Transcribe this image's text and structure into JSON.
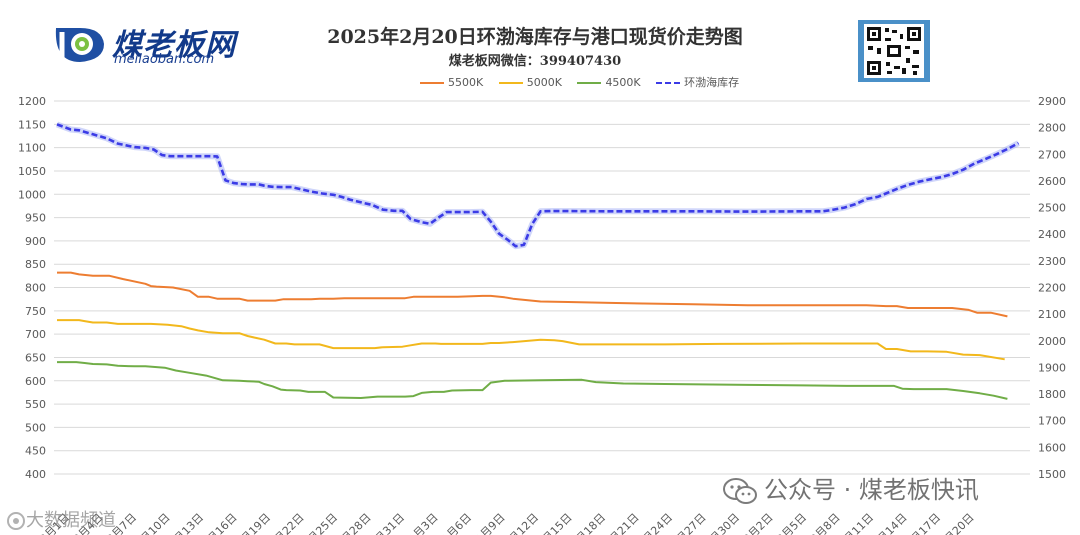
{
  "header": {
    "logo_text": "煤老板网",
    "logo_url": "meilaoban.com",
    "title": "2025年2月20日环渤海库存与港口现货价走势图",
    "subtitle": "煤老板网微信：399407430"
  },
  "watermarks": {
    "wechat": "公众号 · 煤老板快讯",
    "corner": "大数据频道"
  },
  "colors": {
    "p5500": "#ED7D31",
    "p5000": "#F2B81C",
    "p4500": "#70AD47",
    "stock": "#3B3BE6",
    "grid": "#D9D9D9",
    "axis_text": "#595959"
  },
  "chart_data": {
    "type": "line",
    "x": [
      "12月1日",
      "12月4日",
      "12月7日",
      "12月10日",
      "12月13日",
      "12月16日",
      "12月19日",
      "12月22日",
      "12月25日",
      "12月28日",
      "12月31日",
      "1月3日",
      "1月6日",
      "1月9日",
      "1月12日",
      "1月15日",
      "1月18日",
      "1月21日",
      "1月24日",
      "1月27日",
      "1月30日",
      "2月2日",
      "2月5日",
      "2月8日",
      "2月11日",
      "2月14日",
      "2月17日",
      "2月20日"
    ],
    "y_left": {
      "min": 400,
      "max": 1200,
      "ticks": [
        400,
        450,
        500,
        550,
        600,
        650,
        700,
        750,
        800,
        850,
        900,
        950,
        1000,
        1050,
        1100,
        1150,
        1200
      ]
    },
    "y_right": {
      "min": 1500,
      "max": 2900,
      "ticks": [
        1500,
        1600,
        1700,
        1800,
        1900,
        2000,
        2100,
        2200,
        2300,
        2400,
        2500,
        2600,
        2700,
        2800,
        2900
      ]
    },
    "grid": true,
    "legend_position": "top-center",
    "series": [
      {
        "name": "5500K",
        "axis": "left",
        "points": [
          [
            0,
            832
          ],
          [
            5,
            832
          ],
          [
            8,
            828
          ],
          [
            13,
            825
          ],
          [
            19,
            825
          ],
          [
            24,
            818
          ],
          [
            32,
            808
          ],
          [
            34,
            803
          ],
          [
            36,
            802
          ],
          [
            42,
            800
          ],
          [
            48,
            793
          ],
          [
            51,
            780
          ],
          [
            55,
            780
          ],
          [
            58,
            776
          ],
          [
            60,
            776
          ],
          [
            66,
            776
          ],
          [
            69,
            772
          ],
          [
            72,
            772
          ],
          [
            79,
            772
          ],
          [
            82,
            775
          ],
          [
            92,
            775
          ],
          [
            95,
            776
          ],
          [
            100,
            776
          ],
          [
            104,
            777
          ],
          [
            108,
            777
          ],
          [
            121,
            777
          ],
          [
            126,
            777
          ],
          [
            129,
            780
          ],
          [
            135,
            780
          ],
          [
            145,
            780
          ],
          [
            154,
            782
          ],
          [
            157,
            782
          ],
          [
            162,
            779
          ],
          [
            165,
            776
          ],
          [
            170,
            773
          ],
          [
            175,
            770
          ],
          [
            185,
            769
          ],
          [
            200,
            767
          ],
          [
            230,
            764
          ],
          [
            250,
            762
          ],
          [
            271,
            762
          ],
          [
            277,
            762
          ],
          [
            293,
            762
          ],
          [
            297,
            761
          ],
          [
            300,
            760
          ],
          [
            304,
            760
          ],
          [
            308,
            756
          ],
          [
            320,
            756
          ],
          [
            324,
            756
          ],
          [
            330,
            752
          ],
          [
            333,
            746
          ],
          [
            338,
            746
          ],
          [
            344,
            738
          ]
        ]
      },
      {
        "name": "5000K",
        "axis": "left",
        "points": [
          [
            0,
            730
          ],
          [
            8,
            730
          ],
          [
            10,
            728
          ],
          [
            13,
            725
          ],
          [
            18,
            725
          ],
          [
            22,
            722
          ],
          [
            30,
            722
          ],
          [
            34,
            722
          ],
          [
            40,
            720
          ],
          [
            45,
            717
          ],
          [
            48,
            712
          ],
          [
            51,
            708
          ],
          [
            55,
            704
          ],
          [
            60,
            702
          ],
          [
            66,
            702
          ],
          [
            69,
            696
          ],
          [
            72,
            692
          ],
          [
            75,
            688
          ],
          [
            79,
            680
          ],
          [
            83,
            680
          ],
          [
            86,
            678
          ],
          [
            91,
            678
          ],
          [
            95,
            678
          ],
          [
            100,
            670
          ],
          [
            106,
            670
          ],
          [
            115,
            670
          ],
          [
            118,
            672
          ],
          [
            125,
            673
          ],
          [
            128,
            676
          ],
          [
            132,
            680
          ],
          [
            137,
            680
          ],
          [
            139,
            679
          ],
          [
            145,
            679
          ],
          [
            154,
            679
          ],
          [
            157,
            681
          ],
          [
            160,
            681
          ],
          [
            165,
            683
          ],
          [
            175,
            688
          ],
          [
            180,
            687
          ],
          [
            183,
            685
          ],
          [
            189,
            678
          ],
          [
            200,
            678
          ],
          [
            220,
            678
          ],
          [
            240,
            679
          ],
          [
            270,
            680
          ],
          [
            290,
            680
          ],
          [
            297,
            680
          ],
          [
            300,
            668
          ],
          [
            304,
            668
          ],
          [
            309,
            663
          ],
          [
            315,
            663
          ],
          [
            322,
            662
          ],
          [
            328,
            656
          ],
          [
            334,
            655
          ],
          [
            343,
            646
          ]
        ]
      },
      {
        "name": "4500K",
        "axis": "left",
        "points": [
          [
            0,
            640
          ],
          [
            7,
            640
          ],
          [
            10,
            638
          ],
          [
            13,
            636
          ],
          [
            18,
            635
          ],
          [
            22,
            632
          ],
          [
            28,
            631
          ],
          [
            32,
            631
          ],
          [
            39,
            628
          ],
          [
            43,
            622
          ],
          [
            48,
            617
          ],
          [
            54,
            611
          ],
          [
            60,
            601
          ],
          [
            66,
            600
          ],
          [
            69,
            599
          ],
          [
            73,
            598
          ],
          [
            75,
            593
          ],
          [
            78,
            588
          ],
          [
            81,
            581
          ],
          [
            83,
            580
          ],
          [
            88,
            579
          ],
          [
            91,
            576
          ],
          [
            97,
            576
          ],
          [
            100,
            564
          ],
          [
            110,
            563
          ],
          [
            116,
            566
          ],
          [
            120,
            566
          ],
          [
            126,
            566
          ],
          [
            129,
            567
          ],
          [
            132,
            574
          ],
          [
            136,
            576
          ],
          [
            140,
            576
          ],
          [
            143,
            579
          ],
          [
            150,
            580
          ],
          [
            154,
            580
          ],
          [
            157,
            596
          ],
          [
            162,
            600
          ],
          [
            175,
            601
          ],
          [
            190,
            602
          ],
          [
            195,
            597
          ],
          [
            205,
            594
          ],
          [
            220,
            593
          ],
          [
            250,
            591
          ],
          [
            270,
            590
          ],
          [
            286,
            589
          ],
          [
            297,
            589
          ],
          [
            303,
            589
          ],
          [
            306,
            583
          ],
          [
            310,
            582
          ],
          [
            322,
            582
          ],
          [
            328,
            578
          ],
          [
            334,
            573
          ],
          [
            339,
            568
          ],
          [
            344,
            561
          ]
        ]
      },
      {
        "name": "环渤海库存",
        "axis": "right",
        "points": [
          [
            0,
            2812
          ],
          [
            5,
            2793
          ],
          [
            8,
            2790
          ],
          [
            13,
            2775
          ],
          [
            18,
            2760
          ],
          [
            22,
            2740
          ],
          [
            28,
            2727
          ],
          [
            32,
            2724
          ],
          [
            35,
            2718
          ],
          [
            38,
            2697
          ],
          [
            41,
            2693
          ],
          [
            46,
            2693
          ],
          [
            50,
            2693
          ],
          [
            55,
            2693
          ],
          [
            58,
            2692
          ],
          [
            61,
            2602
          ],
          [
            64,
            2592
          ],
          [
            67,
            2588
          ],
          [
            69,
            2587
          ],
          [
            73,
            2587
          ],
          [
            75,
            2582
          ],
          [
            78,
            2578
          ],
          [
            81,
            2577
          ],
          [
            85,
            2577
          ],
          [
            89,
            2567
          ],
          [
            92,
            2560
          ],
          [
            96,
            2553
          ],
          [
            100,
            2548
          ],
          [
            103,
            2540
          ],
          [
            106,
            2530
          ],
          [
            111,
            2517
          ],
          [
            114,
            2510
          ],
          [
            118,
            2492
          ],
          [
            122,
            2488
          ],
          [
            125,
            2488
          ],
          [
            128,
            2457
          ],
          [
            132,
            2445
          ],
          [
            135,
            2439
          ],
          [
            138,
            2462
          ],
          [
            141,
            2483
          ],
          [
            144,
            2483
          ],
          [
            149,
            2483
          ],
          [
            154,
            2484
          ],
          [
            157,
            2447
          ],
          [
            160,
            2402
          ],
          [
            163,
            2380
          ],
          [
            166,
            2355
          ],
          [
            169,
            2360
          ],
          [
            172,
            2438
          ],
          [
            175,
            2486
          ],
          [
            180,
            2487
          ],
          [
            200,
            2486
          ],
          [
            230,
            2486
          ],
          [
            250,
            2485
          ],
          [
            271,
            2486
          ],
          [
            277,
            2486
          ],
          [
            280,
            2490
          ],
          [
            285,
            2500
          ],
          [
            289,
            2513
          ],
          [
            293,
            2532
          ],
          [
            297,
            2540
          ],
          [
            300,
            2553
          ],
          [
            304,
            2570
          ],
          [
            308,
            2585
          ],
          [
            312,
            2597
          ],
          [
            316,
            2606
          ],
          [
            320,
            2614
          ],
          [
            324,
            2626
          ],
          [
            328,
            2642
          ],
          [
            332,
            2665
          ],
          [
            336,
            2682
          ],
          [
            340,
            2700
          ],
          [
            344,
            2720
          ],
          [
            348,
            2742
          ]
        ]
      }
    ]
  }
}
